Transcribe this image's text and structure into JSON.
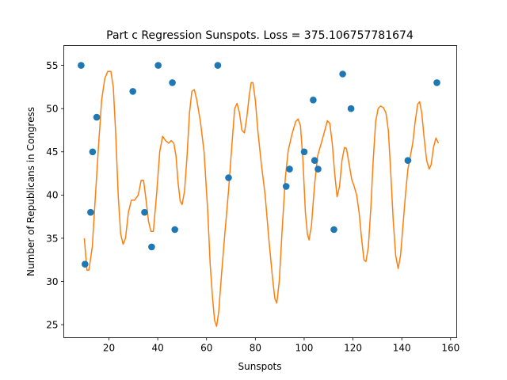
{
  "chart_data": {
    "type": "scatter",
    "title": "Part c Regression Sunspots. Loss = 375.106757781674",
    "xlabel": "Sunspots",
    "ylabel": "Number of Republicans in Congress",
    "xlim": [
      1.5,
      162.5
    ],
    "ylim": [
      23.5,
      57.3
    ],
    "xticks": [
      20,
      40,
      60,
      80,
      100,
      120,
      140,
      160
    ],
    "yticks": [
      25,
      30,
      35,
      40,
      45,
      50,
      55
    ],
    "grid": false,
    "series": [
      {
        "kind": "scatter",
        "color": "#1f77b4",
        "points": [
          [
            8.6,
            55
          ],
          [
            10.2,
            32
          ],
          [
            12.5,
            38
          ],
          [
            13.3,
            45
          ],
          [
            15.0,
            49
          ],
          [
            29.8,
            52
          ],
          [
            34.6,
            38
          ],
          [
            37.5,
            34
          ],
          [
            40.2,
            55
          ],
          [
            46.0,
            53
          ],
          [
            47.0,
            36
          ],
          [
            64.6,
            55
          ],
          [
            69.0,
            42
          ],
          [
            92.6,
            41
          ],
          [
            94.0,
            43
          ],
          [
            100.0,
            45
          ],
          [
            103.7,
            51
          ],
          [
            104.3,
            44
          ],
          [
            105.7,
            43
          ],
          [
            112.2,
            36
          ],
          [
            115.8,
            54
          ],
          [
            119.2,
            50
          ],
          [
            142.5,
            44
          ],
          [
            154.4,
            53
          ]
        ]
      },
      {
        "kind": "line",
        "color": "#ff7f0e",
        "points": [
          [
            9.9,
            35
          ],
          [
            11,
            31.3
          ],
          [
            11.8,
            31.3
          ],
          [
            13.2,
            34
          ],
          [
            14.5,
            40
          ],
          [
            15.8,
            46
          ],
          [
            17,
            51
          ],
          [
            18.3,
            53.5
          ],
          [
            19.5,
            54.3
          ],
          [
            20.8,
            54.3
          ],
          [
            21.8,
            52.5
          ],
          [
            22.8,
            47
          ],
          [
            23.8,
            40
          ],
          [
            24.8,
            35.5
          ],
          [
            25.8,
            34.3
          ],
          [
            26.8,
            35
          ],
          [
            28,
            38
          ],
          [
            29.2,
            39.4
          ],
          [
            30.5,
            39.4
          ],
          [
            32,
            40
          ],
          [
            33.2,
            41.7
          ],
          [
            34.2,
            41.7
          ],
          [
            35.2,
            39.5
          ],
          [
            36.2,
            37
          ],
          [
            37.2,
            35.8
          ],
          [
            38.2,
            35.8
          ],
          [
            39.5,
            40
          ],
          [
            40.8,
            45
          ],
          [
            42,
            46.8
          ],
          [
            43.2,
            46.3
          ],
          [
            44.5,
            46
          ],
          [
            45.5,
            46.3
          ],
          [
            46.6,
            46
          ],
          [
            47.5,
            44.5
          ],
          [
            48.3,
            41.5
          ],
          [
            49.2,
            39.3
          ],
          [
            50,
            38.9
          ],
          [
            51,
            40.5
          ],
          [
            52,
            44.5
          ],
          [
            53,
            49.5
          ],
          [
            54,
            52
          ],
          [
            55,
            52.2
          ],
          [
            56,
            51
          ],
          [
            57.5,
            48.5
          ],
          [
            59,
            45
          ],
          [
            60.5,
            38
          ],
          [
            61.5,
            32
          ],
          [
            62.5,
            28
          ],
          [
            63.3,
            25.5
          ],
          [
            64.1,
            24.8
          ],
          [
            65,
            26.5
          ],
          [
            66.2,
            31
          ],
          [
            67.5,
            35.5
          ],
          [
            69,
            40.5
          ],
          [
            70.3,
            45.5
          ],
          [
            71.5,
            50
          ],
          [
            72.5,
            50.6
          ],
          [
            73.5,
            49.5
          ],
          [
            74.5,
            47.5
          ],
          [
            75.5,
            47.2
          ],
          [
            76.5,
            49
          ],
          [
            77.5,
            51.5
          ],
          [
            78.3,
            53
          ],
          [
            79,
            53
          ],
          [
            80,
            51
          ],
          [
            81,
            47.5
          ],
          [
            82.5,
            43.5
          ],
          [
            84,
            40
          ],
          [
            85.5,
            35
          ],
          [
            87,
            30.5
          ],
          [
            88,
            28
          ],
          [
            88.8,
            27.5
          ],
          [
            89.8,
            30
          ],
          [
            91,
            36
          ],
          [
            92.3,
            42
          ],
          [
            93.5,
            45.2
          ],
          [
            95,
            47
          ],
          [
            96.5,
            48.5
          ],
          [
            97.5,
            48.8
          ],
          [
            98.5,
            48
          ],
          [
            99.5,
            44
          ],
          [
            100.5,
            38
          ],
          [
            101.3,
            35.5
          ],
          [
            102,
            34.8
          ],
          [
            103,
            36.5
          ],
          [
            104.2,
            41
          ],
          [
            105.5,
            44.5
          ],
          [
            107,
            46
          ],
          [
            108.5,
            47.5
          ],
          [
            109.5,
            48.6
          ],
          [
            110.5,
            48.3
          ],
          [
            111.5,
            46
          ],
          [
            112.5,
            42.5
          ],
          [
            113.5,
            39.8
          ],
          [
            114.5,
            41
          ],
          [
            115.5,
            44
          ],
          [
            116.5,
            45.5
          ],
          [
            117.3,
            45.4
          ],
          [
            118.5,
            43.5
          ],
          [
            119.5,
            41.8
          ],
          [
            120.5,
            41
          ],
          [
            121.5,
            40
          ],
          [
            122.5,
            38
          ],
          [
            123.5,
            35
          ],
          [
            124.5,
            32.5
          ],
          [
            125.3,
            32.3
          ],
          [
            126.3,
            34
          ],
          [
            127.3,
            38.5
          ],
          [
            128.3,
            44
          ],
          [
            129.3,
            48.5
          ],
          [
            130.3,
            50
          ],
          [
            131.3,
            50.3
          ],
          [
            132.5,
            50.1
          ],
          [
            133.5,
            49.5
          ],
          [
            134.5,
            47.5
          ],
          [
            135.5,
            42.5
          ],
          [
            136.5,
            37
          ],
          [
            137.5,
            33
          ],
          [
            138.5,
            31.5
          ],
          [
            139.5,
            33
          ],
          [
            140.5,
            36.5
          ],
          [
            141.5,
            40
          ],
          [
            142.5,
            43
          ],
          [
            143.5,
            44.5
          ],
          [
            144.5,
            46
          ],
          [
            145.5,
            48.5
          ],
          [
            146.5,
            50.5
          ],
          [
            147.3,
            50.8
          ],
          [
            148.2,
            49.5
          ],
          [
            149.2,
            46.5
          ],
          [
            150.2,
            44
          ],
          [
            151.2,
            43
          ],
          [
            152,
            43.5
          ],
          [
            153,
            45.5
          ],
          [
            154,
            46.6
          ],
          [
            155,
            46
          ]
        ]
      }
    ]
  }
}
